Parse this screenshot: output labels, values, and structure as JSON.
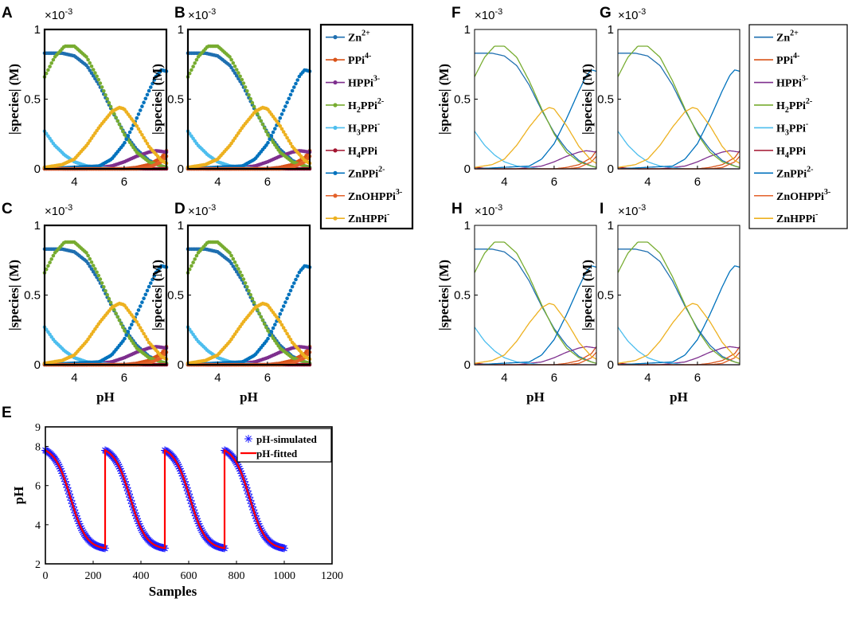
{
  "figure": {
    "species_axis_label": "|species| (M)",
    "species_scale": "×10",
    "species_scale_exp": "-3",
    "ph_axis_label": "pH",
    "samples_axis_label": "Samples"
  },
  "colors": {
    "Zn2+": "#1f6fb0",
    "PPi4-": "#d95319",
    "HPPi3-": "#7e2f8e",
    "H2PPi2-": "#77ac30",
    "H3PPi-": "#4dbeee",
    "H4PPi": "#a2142f",
    "ZnPPi2-": "#0072bd",
    "ZnOHPPi3-": "#e3612a",
    "ZnHPPi-": "#edb120",
    "simulated": "#1a1aff",
    "fitted": "#ff0000"
  },
  "species_legend": [
    {
      "key": "Zn2+",
      "base": "Zn",
      "sub": "",
      "base2": "",
      "sup": "2+"
    },
    {
      "key": "PPi4-",
      "base": "PPi",
      "sub": "",
      "base2": "",
      "sup": "4-"
    },
    {
      "key": "HPPi3-",
      "base": "HPPi",
      "sub": "",
      "base2": "",
      "sup": "3-"
    },
    {
      "key": "H2PPi2-",
      "base": "H",
      "sub": "2",
      "base2": "PPi",
      "sup": "2-"
    },
    {
      "key": "H3PPi-",
      "base": "H",
      "sub": "3",
      "base2": "PPi",
      "sup": "-"
    },
    {
      "key": "H4PPi",
      "base": "H",
      "sub": "4",
      "base2": "PPi",
      "sup": ""
    },
    {
      "key": "ZnPPi2-",
      "base": "ZnPPi",
      "sub": "",
      "base2": "",
      "sup": "2-"
    },
    {
      "key": "ZnOHPPi3-",
      "base": "ZnOHPPi",
      "sub": "",
      "base2": "",
      "sup": "3-"
    },
    {
      "key": "ZnHPPi-",
      "base": "ZnHPPi",
      "sub": "",
      "base2": "",
      "sup": "-"
    }
  ],
  "chart_data": [
    {
      "panels": [
        "A",
        "B",
        "C",
        "D"
      ],
      "type": "scatter",
      "marker_style": "dense markers",
      "xlabel": "pH",
      "ylabel": "|species| (M)",
      "y_scale": "×10^-3",
      "xlim": [
        2.8,
        7.7
      ],
      "ylim": [
        0,
        1.0
      ],
      "x_ticks": [
        4,
        6
      ],
      "y_ticks": [
        0,
        0.5,
        1
      ],
      "peaks_description": "species concentration (×10^-3 M) vs pH",
      "series": [
        {
          "name": "Zn2+",
          "x": [
            2.8,
            3.5,
            4.0,
            4.5,
            5.0,
            5.5,
            6.0,
            6.5,
            7.0,
            7.5,
            7.7
          ],
          "values": [
            0.83,
            0.83,
            0.81,
            0.74,
            0.6,
            0.42,
            0.26,
            0.14,
            0.06,
            0.02,
            0.01
          ]
        },
        {
          "name": "PPi4-",
          "x": [
            2.8,
            5.0,
            6.0,
            6.5,
            7.0,
            7.5,
            7.7
          ],
          "values": [
            0.0,
            0.0,
            0.0,
            0.01,
            0.03,
            0.08,
            0.13
          ]
        },
        {
          "name": "HPPi3-",
          "x": [
            2.8,
            4.5,
            5.5,
            6.0,
            6.5,
            7.0,
            7.3,
            7.7
          ],
          "values": [
            0.0,
            0.0,
            0.02,
            0.05,
            0.09,
            0.12,
            0.13,
            0.12
          ]
        },
        {
          "name": "H2PPi2-",
          "x": [
            2.8,
            3.2,
            3.6,
            4.0,
            4.5,
            5.0,
            5.5,
            6.0,
            6.5,
            7.0,
            7.5,
            7.7
          ],
          "values": [
            0.66,
            0.8,
            0.88,
            0.88,
            0.8,
            0.63,
            0.43,
            0.25,
            0.12,
            0.05,
            0.02,
            0.01
          ]
        },
        {
          "name": "H3PPi-",
          "x": [
            2.8,
            3.2,
            3.6,
            4.0,
            4.5,
            5.0,
            5.5,
            6.0
          ],
          "values": [
            0.27,
            0.17,
            0.1,
            0.05,
            0.02,
            0.01,
            0.0,
            0.0
          ]
        },
        {
          "name": "H4PPi",
          "x": [
            2.8,
            3.2,
            3.6,
            4.0,
            5.0
          ],
          "values": [
            0.01,
            0.005,
            0.0,
            0.0,
            0.0
          ]
        },
        {
          "name": "ZnPPi2-",
          "x": [
            2.8,
            5.0,
            5.5,
            6.0,
            6.5,
            7.0,
            7.3,
            7.5,
            7.7
          ],
          "values": [
            0.0,
            0.02,
            0.07,
            0.18,
            0.36,
            0.56,
            0.67,
            0.71,
            0.7
          ]
        },
        {
          "name": "ZnOHPPi3-",
          "x": [
            2.8,
            6.5,
            7.0,
            7.5,
            7.7
          ],
          "values": [
            0.0,
            0.0,
            0.01,
            0.05,
            0.09
          ]
        },
        {
          "name": "ZnHPPi-",
          "x": [
            2.8,
            3.5,
            4.0,
            4.5,
            5.0,
            5.5,
            5.8,
            6.0,
            6.5,
            7.0,
            7.5,
            7.7
          ],
          "values": [
            0.01,
            0.03,
            0.07,
            0.17,
            0.3,
            0.41,
            0.44,
            0.43,
            0.31,
            0.16,
            0.06,
            0.04
          ]
        }
      ]
    },
    {
      "panels": [
        "F",
        "G",
        "H",
        "I"
      ],
      "type": "line",
      "xlabel": "pH",
      "ylabel": "|species| (M)",
      "y_scale": "×10^-3",
      "xlim": [
        2.8,
        7.7
      ],
      "ylim": [
        0,
        1.0
      ],
      "x_ticks": [
        4,
        6
      ],
      "y_ticks": [
        0,
        0.5,
        1
      ],
      "series_note": "same species and shapes as panels A–D, drawn as lines"
    },
    {
      "panels": [
        "E"
      ],
      "type": "line",
      "xlabel": "Samples",
      "ylabel": "pH",
      "xlim": [
        0,
        1200
      ],
      "ylim": [
        2,
        9
      ],
      "x_ticks": [
        0,
        200,
        400,
        600,
        800,
        1000,
        1200
      ],
      "y_ticks": [
        2,
        4,
        6,
        8
      ],
      "y_tick_labels": [
        "2",
        "4",
        "6",
        "8"
      ],
      "y_extra_tick": "9",
      "legend": [
        "pH-simulated",
        "pH-fitted"
      ],
      "legend_position": "top-right",
      "cycle_samples": [
        0,
        250,
        500,
        750,
        1000
      ],
      "cycle_start_pH": 7.8,
      "cycle_end_pH": 2.8
    }
  ]
}
